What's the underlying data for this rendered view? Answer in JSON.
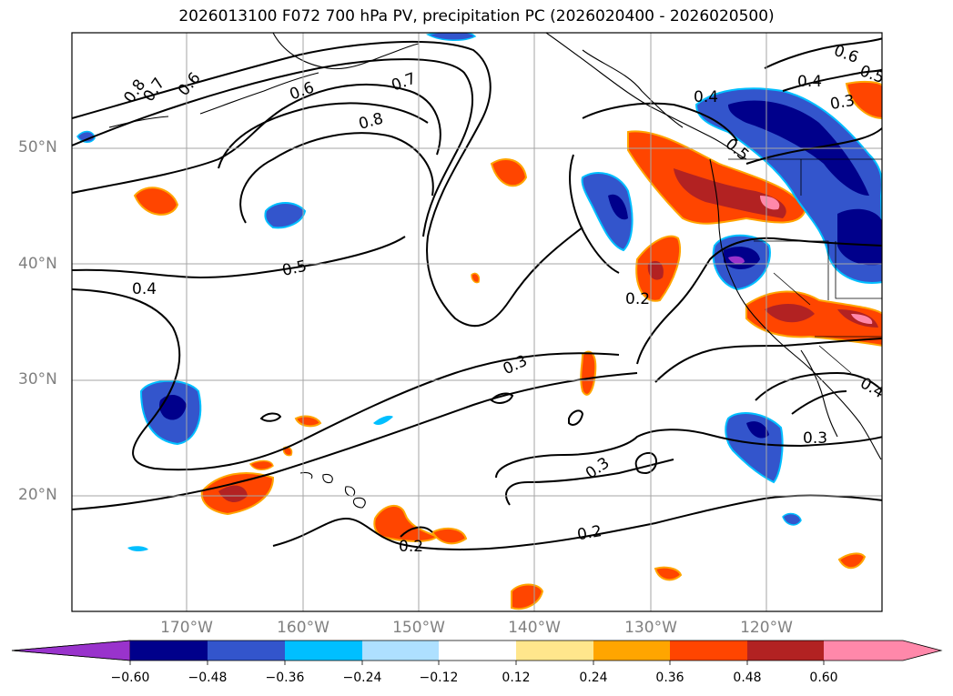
{
  "title": "2026013100 F072 700 hPa PV, precipitation PC (2026020400 - 2026020500)",
  "lat_labels": [
    "50°N",
    "40°N",
    "30°N",
    "20°N"
  ],
  "lon_labels": [
    "170°W",
    "160°W",
    "150°W",
    "140°W",
    "130°W",
    "120°W"
  ],
  "contour_labels": [
    "0.8",
    "0.7",
    "0.6",
    "0.6",
    "0.7",
    "0.8",
    "0.5",
    "0.4",
    "0.3",
    "0.2",
    "0.3",
    "0.2",
    "0.2",
    "0.4",
    "0.5",
    "0.3",
    "0.6",
    "0.5",
    "0.4",
    "0.3",
    "0.4"
  ],
  "colorbar": {
    "ticks": [
      "−0.60",
      "−0.48",
      "−0.36",
      "−0.24",
      "−0.12",
      "0.12",
      "0.24",
      "0.36",
      "0.48",
      "0.60"
    ],
    "colors": [
      "#9933cc",
      "#00008b",
      "#3355cc",
      "#00bfff",
      "#aee0ff",
      "#ffffff",
      "#ffe68c",
      "#ffa500",
      "#ff4500",
      "#b22222",
      "#ff88aa",
      "#ff88aa"
    ]
  },
  "colors": {
    "coast": "#000000",
    "grid": "#a6a6a6",
    "contour": "#000000"
  }
}
